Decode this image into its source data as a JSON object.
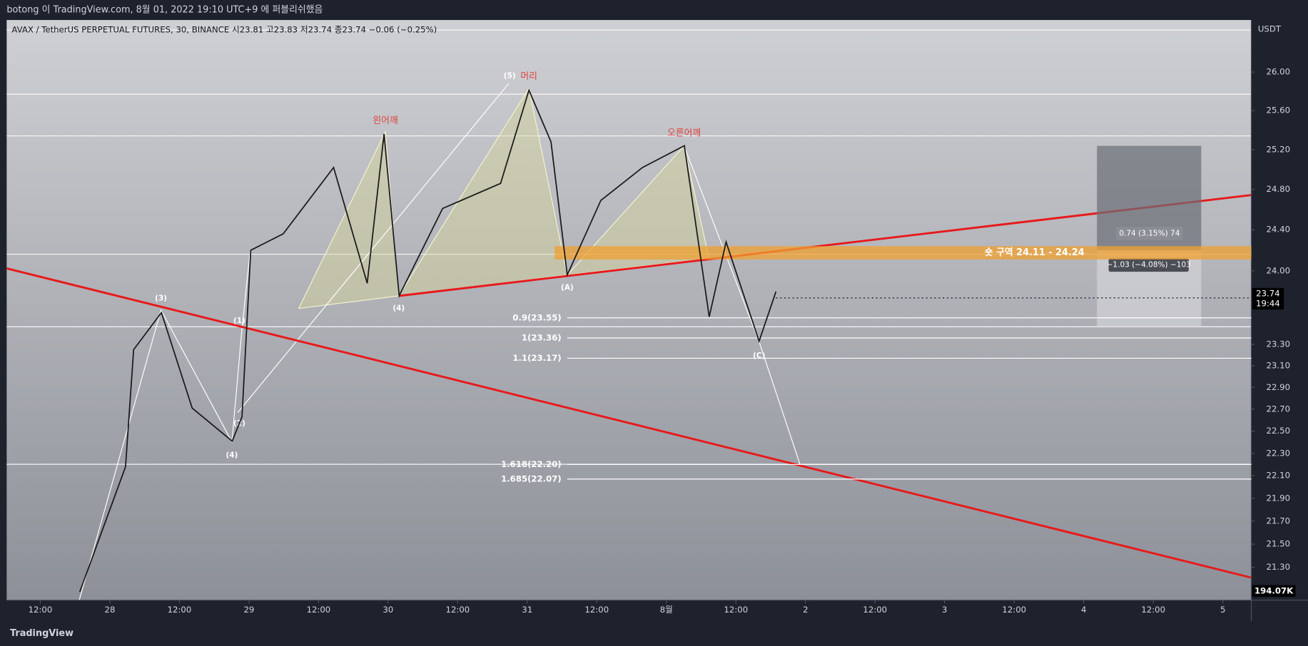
{
  "header": {
    "published": "botong 이 TradingView.com, 8월 01, 2022 19:10 UTC+9 에 퍼블리쉬했음",
    "legend": "AVAX / TetherUS PERPETUAL FUTURES, 30, BINANCE  시23.81  고23.83  저23.74  종23.74  −0.06 (−0.25%)"
  },
  "chart_data": {
    "type": "line",
    "currency": "USDT",
    "log_scale": true,
    "color": "#1a1a1a",
    "x": [
      6.8,
      14.7,
      16.1,
      20.9,
      26.2,
      33.1,
      34.8,
      36.3,
      41.9,
      50.6,
      56.4,
      59.3,
      61.9,
      69.4,
      79.4,
      84.3,
      88.1,
      90.9,
      96.7,
      103.9,
      111.1,
      115.4,
      118.3,
      124,
      126.9
    ],
    "values": [
      21.09,
      22.18,
      23.25,
      23.6,
      22.71,
      22.41,
      22.63,
      24.2,
      24.36,
      25.02,
      23.88,
      25.36,
      23.76,
      24.61,
      24.86,
      25.81,
      25.28,
      23.96,
      24.69,
      25.02,
      25.24,
      23.56,
      24.28,
      23.33,
      23.8
    ],
    "xlim": [
      -5.8,
      208.9
    ],
    "xticks": [
      {
        "value": 0,
        "label": "12:00"
      },
      {
        "value": 12,
        "label": "28"
      },
      {
        "value": 24,
        "label": "12:00"
      },
      {
        "value": 36,
        "label": "29"
      },
      {
        "value": 48,
        "label": "12:00"
      },
      {
        "value": 60,
        "label": "30"
      },
      {
        "value": 72,
        "label": "12:00"
      },
      {
        "value": 84,
        "label": "31"
      },
      {
        "value": 96,
        "label": "12:00"
      },
      {
        "value": 108,
        "label": "8월"
      },
      {
        "value": 120,
        "label": "12:00"
      },
      {
        "value": 132,
        "label": "2"
      },
      {
        "value": 144,
        "label": "12:00"
      },
      {
        "value": 156,
        "label": "3"
      },
      {
        "value": 168,
        "label": "12:00"
      },
      {
        "value": 180,
        "label": "4"
      },
      {
        "value": 192,
        "label": "12:00"
      },
      {
        "value": 204,
        "label": "5"
      }
    ],
    "ylim": [
      21.02,
      26.55
    ],
    "yticks": [
      {
        "value": 26,
        "label": "26.00"
      },
      {
        "value": 25.6,
        "label": "25.60"
      },
      {
        "value": 25.2,
        "label": "25.20"
      },
      {
        "value": 24.8,
        "label": "24.80"
      },
      {
        "value": 24.4,
        "label": "24.40"
      },
      {
        "value": 24,
        "label": "24.00"
      },
      {
        "value": 23.3,
        "label": "23.30"
      },
      {
        "value": 23.1,
        "label": "23.10"
      },
      {
        "value": 22.9,
        "label": "22.90"
      },
      {
        "value": 22.7,
        "label": "22.70"
      },
      {
        "value": 22.5,
        "label": "22.50"
      },
      {
        "value": 22.3,
        "label": "22.30"
      },
      {
        "value": 22.1,
        "label": "22.10"
      },
      {
        "value": 21.9,
        "label": "21.90"
      },
      {
        "value": 21.7,
        "label": "21.70"
      },
      {
        "value": 21.5,
        "label": "21.50"
      },
      {
        "value": 21.3,
        "label": "21.30"
      }
    ],
    "last_price": {
      "value": 23.74,
      "label": "23.74",
      "countdown": "19:44"
    },
    "volume_label": "194.07K",
    "fib_levels": [
      {
        "label": "0.9(23.55)",
        "price": 23.55
      },
      {
        "label": "1(23.36)",
        "price": 23.36
      },
      {
        "label": "1.1(23.17)",
        "price": 23.17
      },
      {
        "label": "1.618(22.20)",
        "price": 22.2
      },
      {
        "label": "1.685(22.07)",
        "price": 22.07
      }
    ],
    "short_zone": {
      "label": "숏 구역 24.11 - 24.24",
      "low": 24.11,
      "high": 24.24,
      "color": "#f0a030"
    },
    "position": {
      "target": "0.74 (3.15%) 74",
      "stop": "−1.03 (−4.08%) −103"
    },
    "wave_labels": [
      "(3)",
      "(1)",
      "(2)",
      "(4)",
      "(4)",
      "(5)",
      "(A)",
      "(C)"
    ],
    "pattern_labels": [
      "왼어깨",
      "머리",
      "오른어깨"
    ]
  },
  "footer": {
    "brand": "TradingView"
  }
}
